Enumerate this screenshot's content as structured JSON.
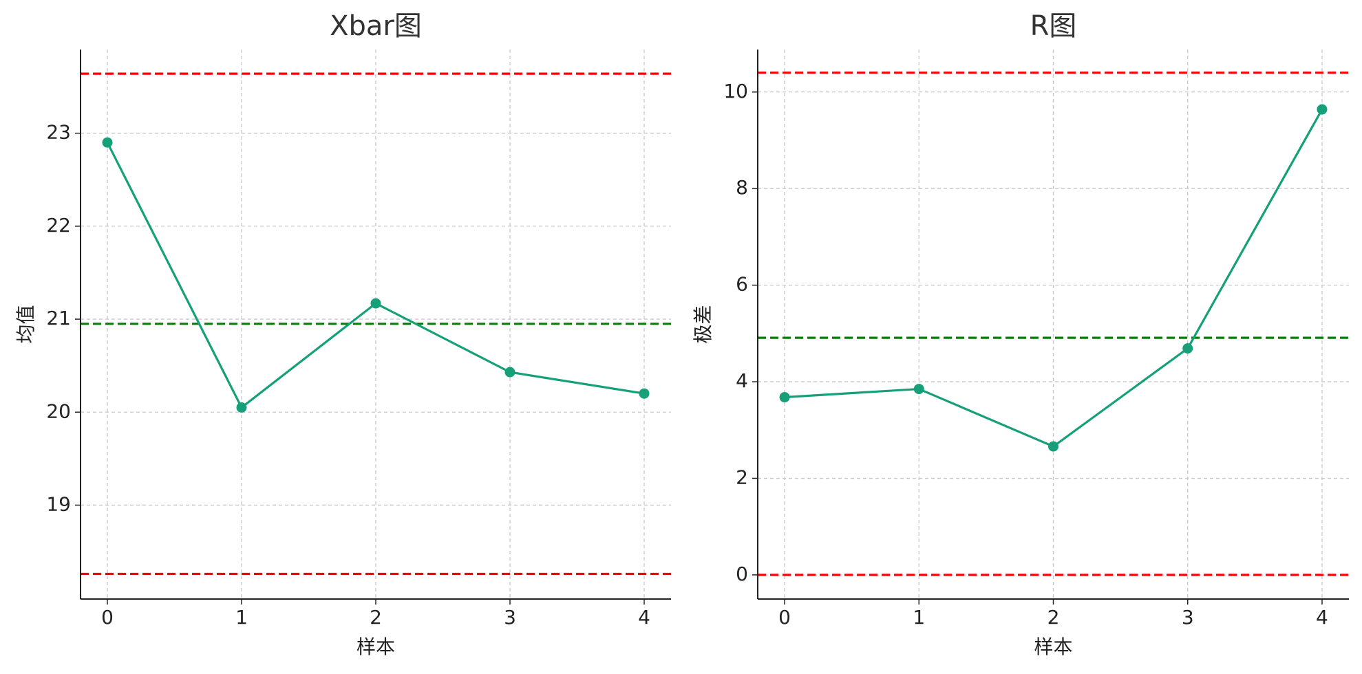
{
  "chart_data": [
    {
      "type": "line",
      "title": "Xbar图",
      "x_label": "样本",
      "y_label": "均值",
      "x": [
        0,
        1,
        2,
        3,
        4
      ],
      "series": [
        {
          "color": "#16a07a",
          "values": [
            22.9,
            20.05,
            21.17,
            20.43,
            20.2
          ]
        }
      ],
      "reference_lines": [
        {
          "value": 23.64,
          "color": "#ff0000"
        },
        {
          "value": 20.95,
          "color": "#008000"
        },
        {
          "value": 18.26,
          "color": "#ff0000"
        }
      ],
      "xlim": [
        -0.2,
        4.2
      ],
      "xticks": [
        0,
        1,
        2,
        3,
        4
      ],
      "ylim": [
        17.99,
        23.9
      ],
      "yticks": [
        19,
        20,
        21,
        22,
        23
      ],
      "grid": true
    },
    {
      "type": "line",
      "title": "R图",
      "x_label": "样本",
      "y_label": "极差",
      "x": [
        0,
        1,
        2,
        3,
        4
      ],
      "series": [
        {
          "color": "#16a07a",
          "values": [
            3.68,
            3.85,
            2.66,
            4.69,
            9.64
          ]
        }
      ],
      "reference_lines": [
        {
          "value": 10.4,
          "color": "#ff0000"
        },
        {
          "value": 4.91,
          "color": "#008000"
        },
        {
          "value": 0,
          "color": "#ff0000"
        }
      ],
      "xlim": [
        -0.2,
        4.2
      ],
      "xticks": [
        0,
        1,
        2,
        3,
        4
      ],
      "ylim": [
        -0.5,
        10.88
      ],
      "yticks": [
        0,
        2,
        4,
        6,
        8,
        10
      ],
      "grid": true
    }
  ]
}
